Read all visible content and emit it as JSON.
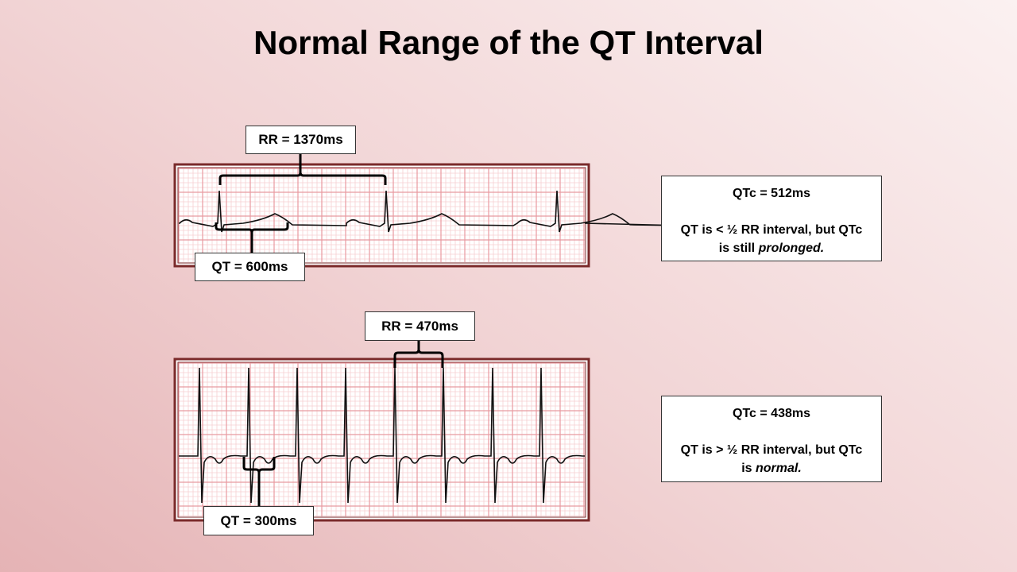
{
  "title": "Normal Range of the QT Interval",
  "strip1": {
    "rr_label": "RR = 1370ms",
    "qt_label": "QT = 600ms"
  },
  "strip2": {
    "rr_label": "RR = 470ms",
    "qt_label": "QT = 300ms"
  },
  "note1": {
    "qtc": "QTc = 512ms",
    "line1": "QT is < ½ RR interval, but QTc",
    "line2_prefix": "is still ",
    "line2_emph": "prolonged."
  },
  "note2": {
    "qtc": "QTc = 438ms",
    "line1": "QT is > ½ RR interval, but QTc",
    "line2_prefix": "is ",
    "line2_emph": "normal."
  },
  "colors": {
    "frame": "#7a2a2a",
    "grid_major": "#e89aa0",
    "grid_minor": "#f6cfd2",
    "trace": "#111111"
  }
}
